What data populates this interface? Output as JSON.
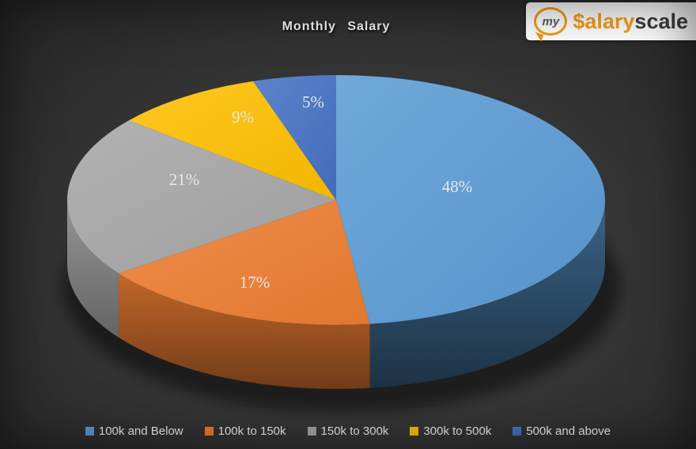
{
  "title": "Monthly Salary",
  "logo": {
    "bubble_text": "my",
    "brand_accent": "$alary",
    "brand_rest": "scale"
  },
  "chart_data": {
    "type": "pie",
    "style": "3d",
    "title": "Monthly Salary",
    "categories": [
      "100k and Below",
      "100k to 150k",
      "150k to 300k",
      "300k to 500k",
      "500k and above"
    ],
    "values": [
      48,
      17,
      21,
      9,
      5
    ],
    "unit": "%",
    "slice_labels": [
      "48%",
      "17%",
      "21%",
      "9%",
      "5%"
    ],
    "colors": [
      "#5b9bd5",
      "#ed7d31",
      "#a6a6a6",
      "#ffc000",
      "#4472c4"
    ],
    "legend_position": "bottom",
    "start_angle_deg": 0,
    "direction": "clockwise",
    "background_color": "#333333",
    "label_color": "#e7e7e7"
  }
}
